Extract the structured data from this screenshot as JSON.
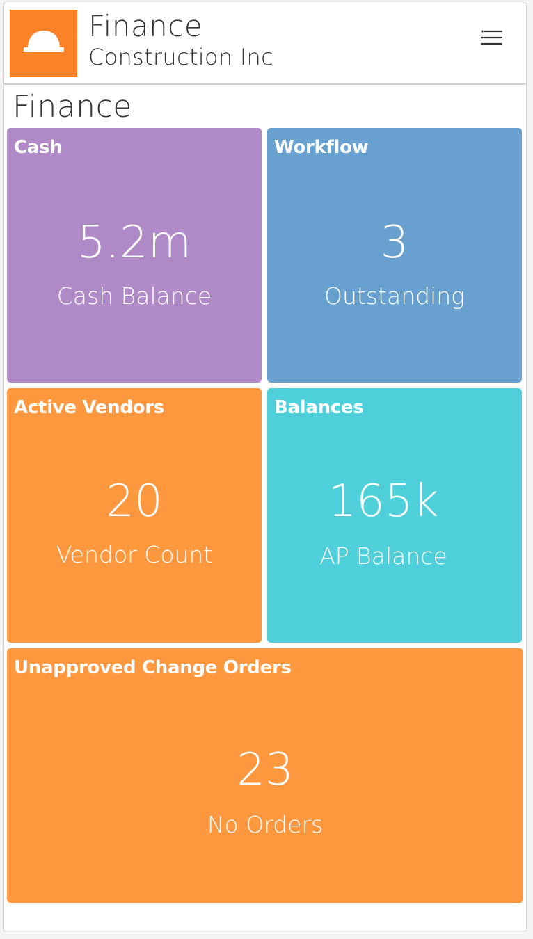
{
  "header": {
    "title": "Finance",
    "company": "Construction Inc",
    "logo_icon": "hard-hat-icon",
    "menu_icon": "menu-list-icon"
  },
  "page": {
    "title": "Finance"
  },
  "tiles": [
    {
      "title": "Cash",
      "value": "5.2m",
      "label": "Cash Balance",
      "color": "#b089c7"
    },
    {
      "title": "Workflow",
      "value": "3",
      "label": "Outstanding",
      "color": "#68a1cf"
    },
    {
      "title": "Active Vendors",
      "value": "20",
      "label": "Vendor Count",
      "color": "#fd983f"
    },
    {
      "title": "Balances",
      "value": "165k",
      "label": "AP Balance",
      "color": "#4ecfda"
    },
    {
      "title": "Unapproved Change Orders",
      "value": "23",
      "label": "No Orders",
      "color": "#fd983f"
    }
  ],
  "colors": {
    "logo_bg": "#fb8227",
    "accent": "#fd983f"
  }
}
